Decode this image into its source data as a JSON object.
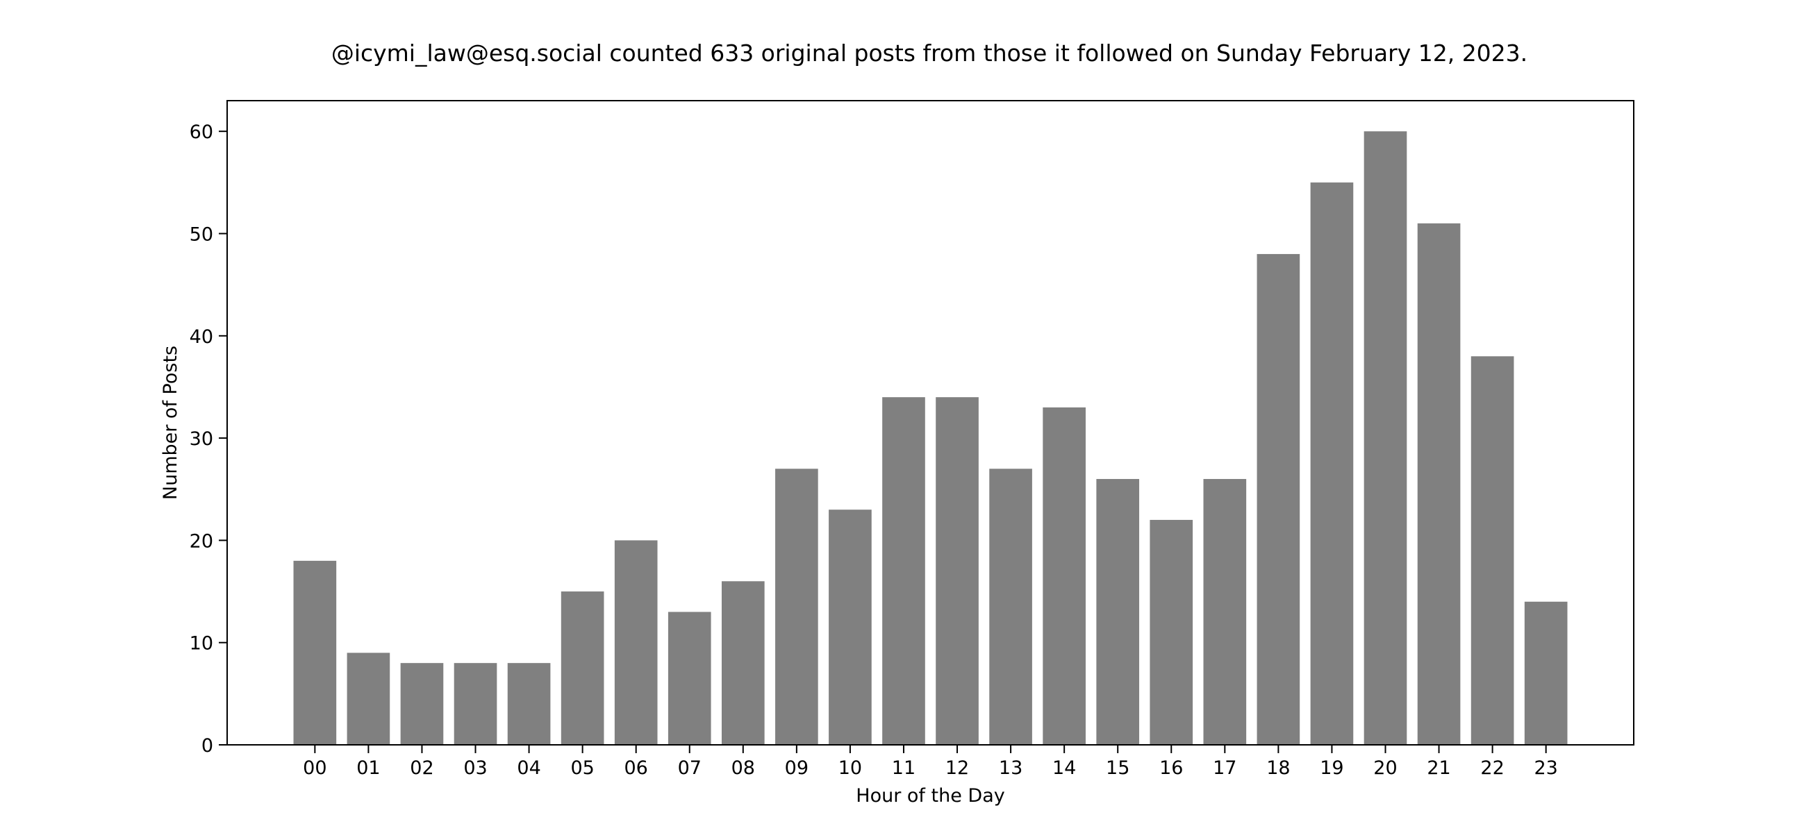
{
  "chart_data": {
    "type": "bar",
    "title": "@icymi_law@esq.social counted 633 original posts from those it followed on Sunday February 12, 2023.",
    "xlabel": "Hour of the Day",
    "ylabel": "Number of Posts",
    "categories": [
      "00",
      "01",
      "02",
      "03",
      "04",
      "05",
      "06",
      "07",
      "08",
      "09",
      "10",
      "11",
      "12",
      "13",
      "14",
      "15",
      "16",
      "17",
      "18",
      "19",
      "20",
      "21",
      "22",
      "23"
    ],
    "values": [
      18,
      9,
      8,
      8,
      8,
      15,
      20,
      13,
      16,
      27,
      23,
      34,
      34,
      27,
      33,
      26,
      22,
      26,
      48,
      55,
      60,
      51,
      38,
      14
    ],
    "ylim": [
      0,
      63
    ],
    "yticks": [
      0,
      10,
      20,
      30,
      40,
      50,
      60
    ],
    "grid": false,
    "legend": "none",
    "bar_color": "#808080"
  }
}
